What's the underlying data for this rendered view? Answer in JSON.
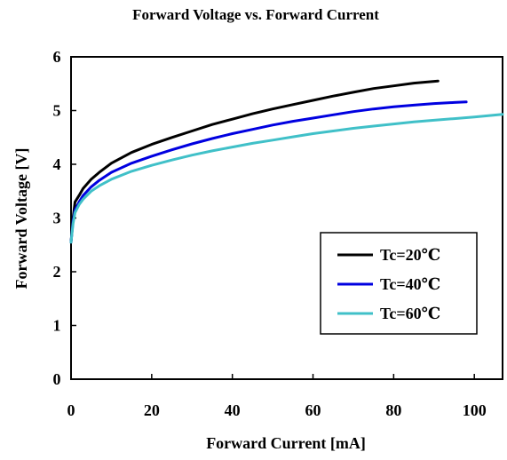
{
  "chart_data": {
    "type": "line",
    "title": "Forward Voltage  vs.  Forward Current",
    "xlabel": "Forward Current [mA]",
    "ylabel": "Forward Voltage [V]",
    "xlim": [
      0,
      107
    ],
    "ylim": [
      0,
      6
    ],
    "xticks": [
      0,
      20,
      40,
      60,
      80,
      100
    ],
    "yticks": [
      0,
      1,
      2,
      3,
      4,
      5,
      6
    ],
    "grid": false,
    "legend_position": "bottom-right",
    "series": [
      {
        "name": "Tc=20℃",
        "color": "#000000",
        "x": [
          0,
          0.5,
          1,
          2,
          3,
          5,
          7,
          10,
          15,
          20,
          25,
          30,
          35,
          40,
          45,
          50,
          55,
          60,
          65,
          70,
          75,
          80,
          85,
          91
        ],
        "y": [
          2.55,
          3.0,
          3.3,
          3.42,
          3.55,
          3.72,
          3.85,
          4.02,
          4.22,
          4.37,
          4.5,
          4.62,
          4.74,
          4.84,
          4.94,
          5.03,
          5.11,
          5.19,
          5.27,
          5.34,
          5.41,
          5.46,
          5.51,
          5.55
        ]
      },
      {
        "name": "Tc=40℃",
        "color": "#0000e0",
        "x": [
          0,
          0.5,
          1,
          2,
          3,
          5,
          7,
          10,
          15,
          20,
          25,
          30,
          35,
          40,
          45,
          50,
          55,
          60,
          65,
          70,
          75,
          80,
          85,
          90,
          95,
          98
        ],
        "y": [
          2.55,
          2.95,
          3.15,
          3.3,
          3.42,
          3.58,
          3.7,
          3.85,
          4.02,
          4.15,
          4.27,
          4.38,
          4.48,
          4.57,
          4.65,
          4.73,
          4.8,
          4.86,
          4.92,
          4.98,
          5.03,
          5.07,
          5.1,
          5.13,
          5.15,
          5.16
        ]
      },
      {
        "name": "Tc=60℃",
        "color": "#40c0c8",
        "x": [
          0,
          0.5,
          1,
          2,
          3,
          5,
          7,
          10,
          15,
          20,
          25,
          30,
          35,
          40,
          45,
          50,
          55,
          60,
          65,
          70,
          75,
          80,
          85,
          90,
          95,
          100,
          107
        ],
        "y": [
          2.55,
          2.9,
          3.1,
          3.25,
          3.35,
          3.5,
          3.6,
          3.72,
          3.87,
          3.98,
          4.08,
          4.17,
          4.25,
          4.32,
          4.39,
          4.45,
          4.51,
          4.57,
          4.62,
          4.67,
          4.71,
          4.75,
          4.79,
          4.82,
          4.85,
          4.88,
          4.93
        ]
      }
    ]
  }
}
